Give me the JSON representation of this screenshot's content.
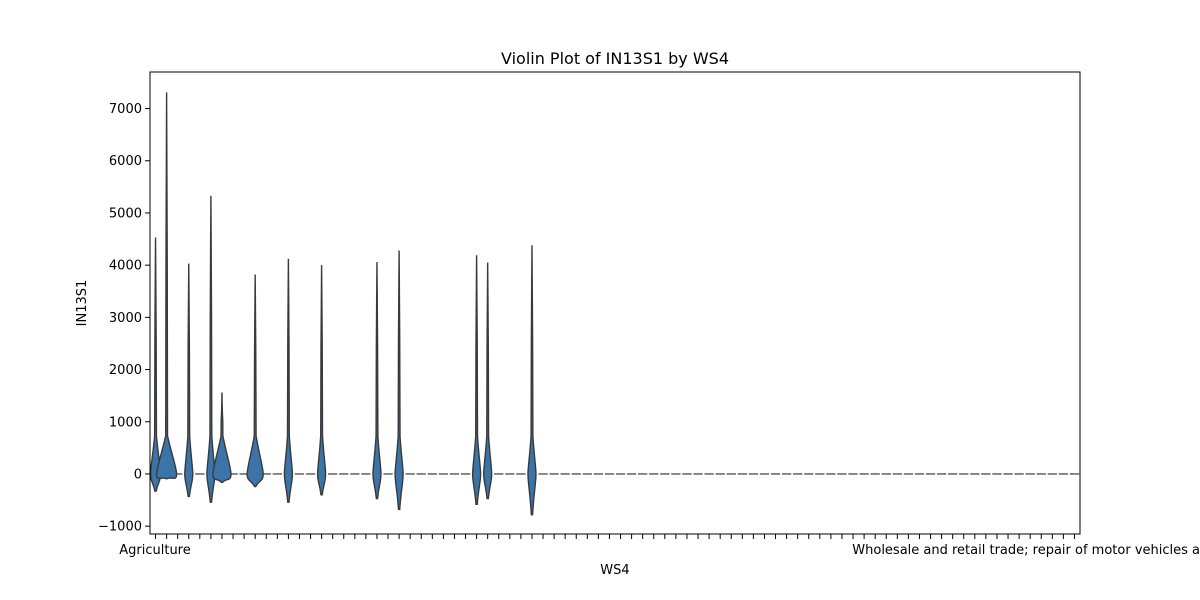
{
  "chart_data": {
    "type": "violin",
    "title": "Violin Plot of IN13S1 by WS4",
    "xlabel": "WS4",
    "ylabel": "IN13S1",
    "ylim": [
      -1150,
      7700
    ],
    "yticks": [
      -1000,
      0,
      1000,
      2000,
      3000,
      4000,
      5000,
      6000,
      7000
    ],
    "ytick_labels": [
      "−1000",
      "0",
      "1000",
      "2000",
      "3000",
      "4000",
      "5000",
      "6000",
      "7000"
    ],
    "category_count": 84,
    "first_category_label": "Agriculture",
    "last_category_label": "Wholesale and retail trade; repair of motor vehicles and motorcycles",
    "grid": false,
    "legend": "none",
    "fill_color": "#3a74a8",
    "line_color": "#3a3a3a",
    "violins": [
      {
        "index": 0,
        "min": -330,
        "max": 4530,
        "bulge": 5
      },
      {
        "index": 1,
        "min": -90,
        "max": 7310,
        "bulge": 10
      },
      {
        "index": 3,
        "min": -430,
        "max": 4030,
        "bulge": 4
      },
      {
        "index": 5,
        "min": -540,
        "max": 5330,
        "bulge": 4
      },
      {
        "index": 6,
        "min": -160,
        "max": 1560,
        "bulge": 9
      },
      {
        "index": 9,
        "min": -240,
        "max": 3820,
        "bulge": 8
      },
      {
        "index": 12,
        "min": -540,
        "max": 4120,
        "bulge": 4
      },
      {
        "index": 15,
        "min": -400,
        "max": 4000,
        "bulge": 4
      },
      {
        "index": 20,
        "min": -470,
        "max": 4060,
        "bulge": 4
      },
      {
        "index": 22,
        "min": -680,
        "max": 4280,
        "bulge": 4
      },
      {
        "index": 29,
        "min": -580,
        "max": 4190,
        "bulge": 4
      },
      {
        "index": 30,
        "min": -470,
        "max": 4050,
        "bulge": 4
      },
      {
        "index": 34,
        "min": -780,
        "max": 4380,
        "bulge": 4
      }
    ]
  }
}
